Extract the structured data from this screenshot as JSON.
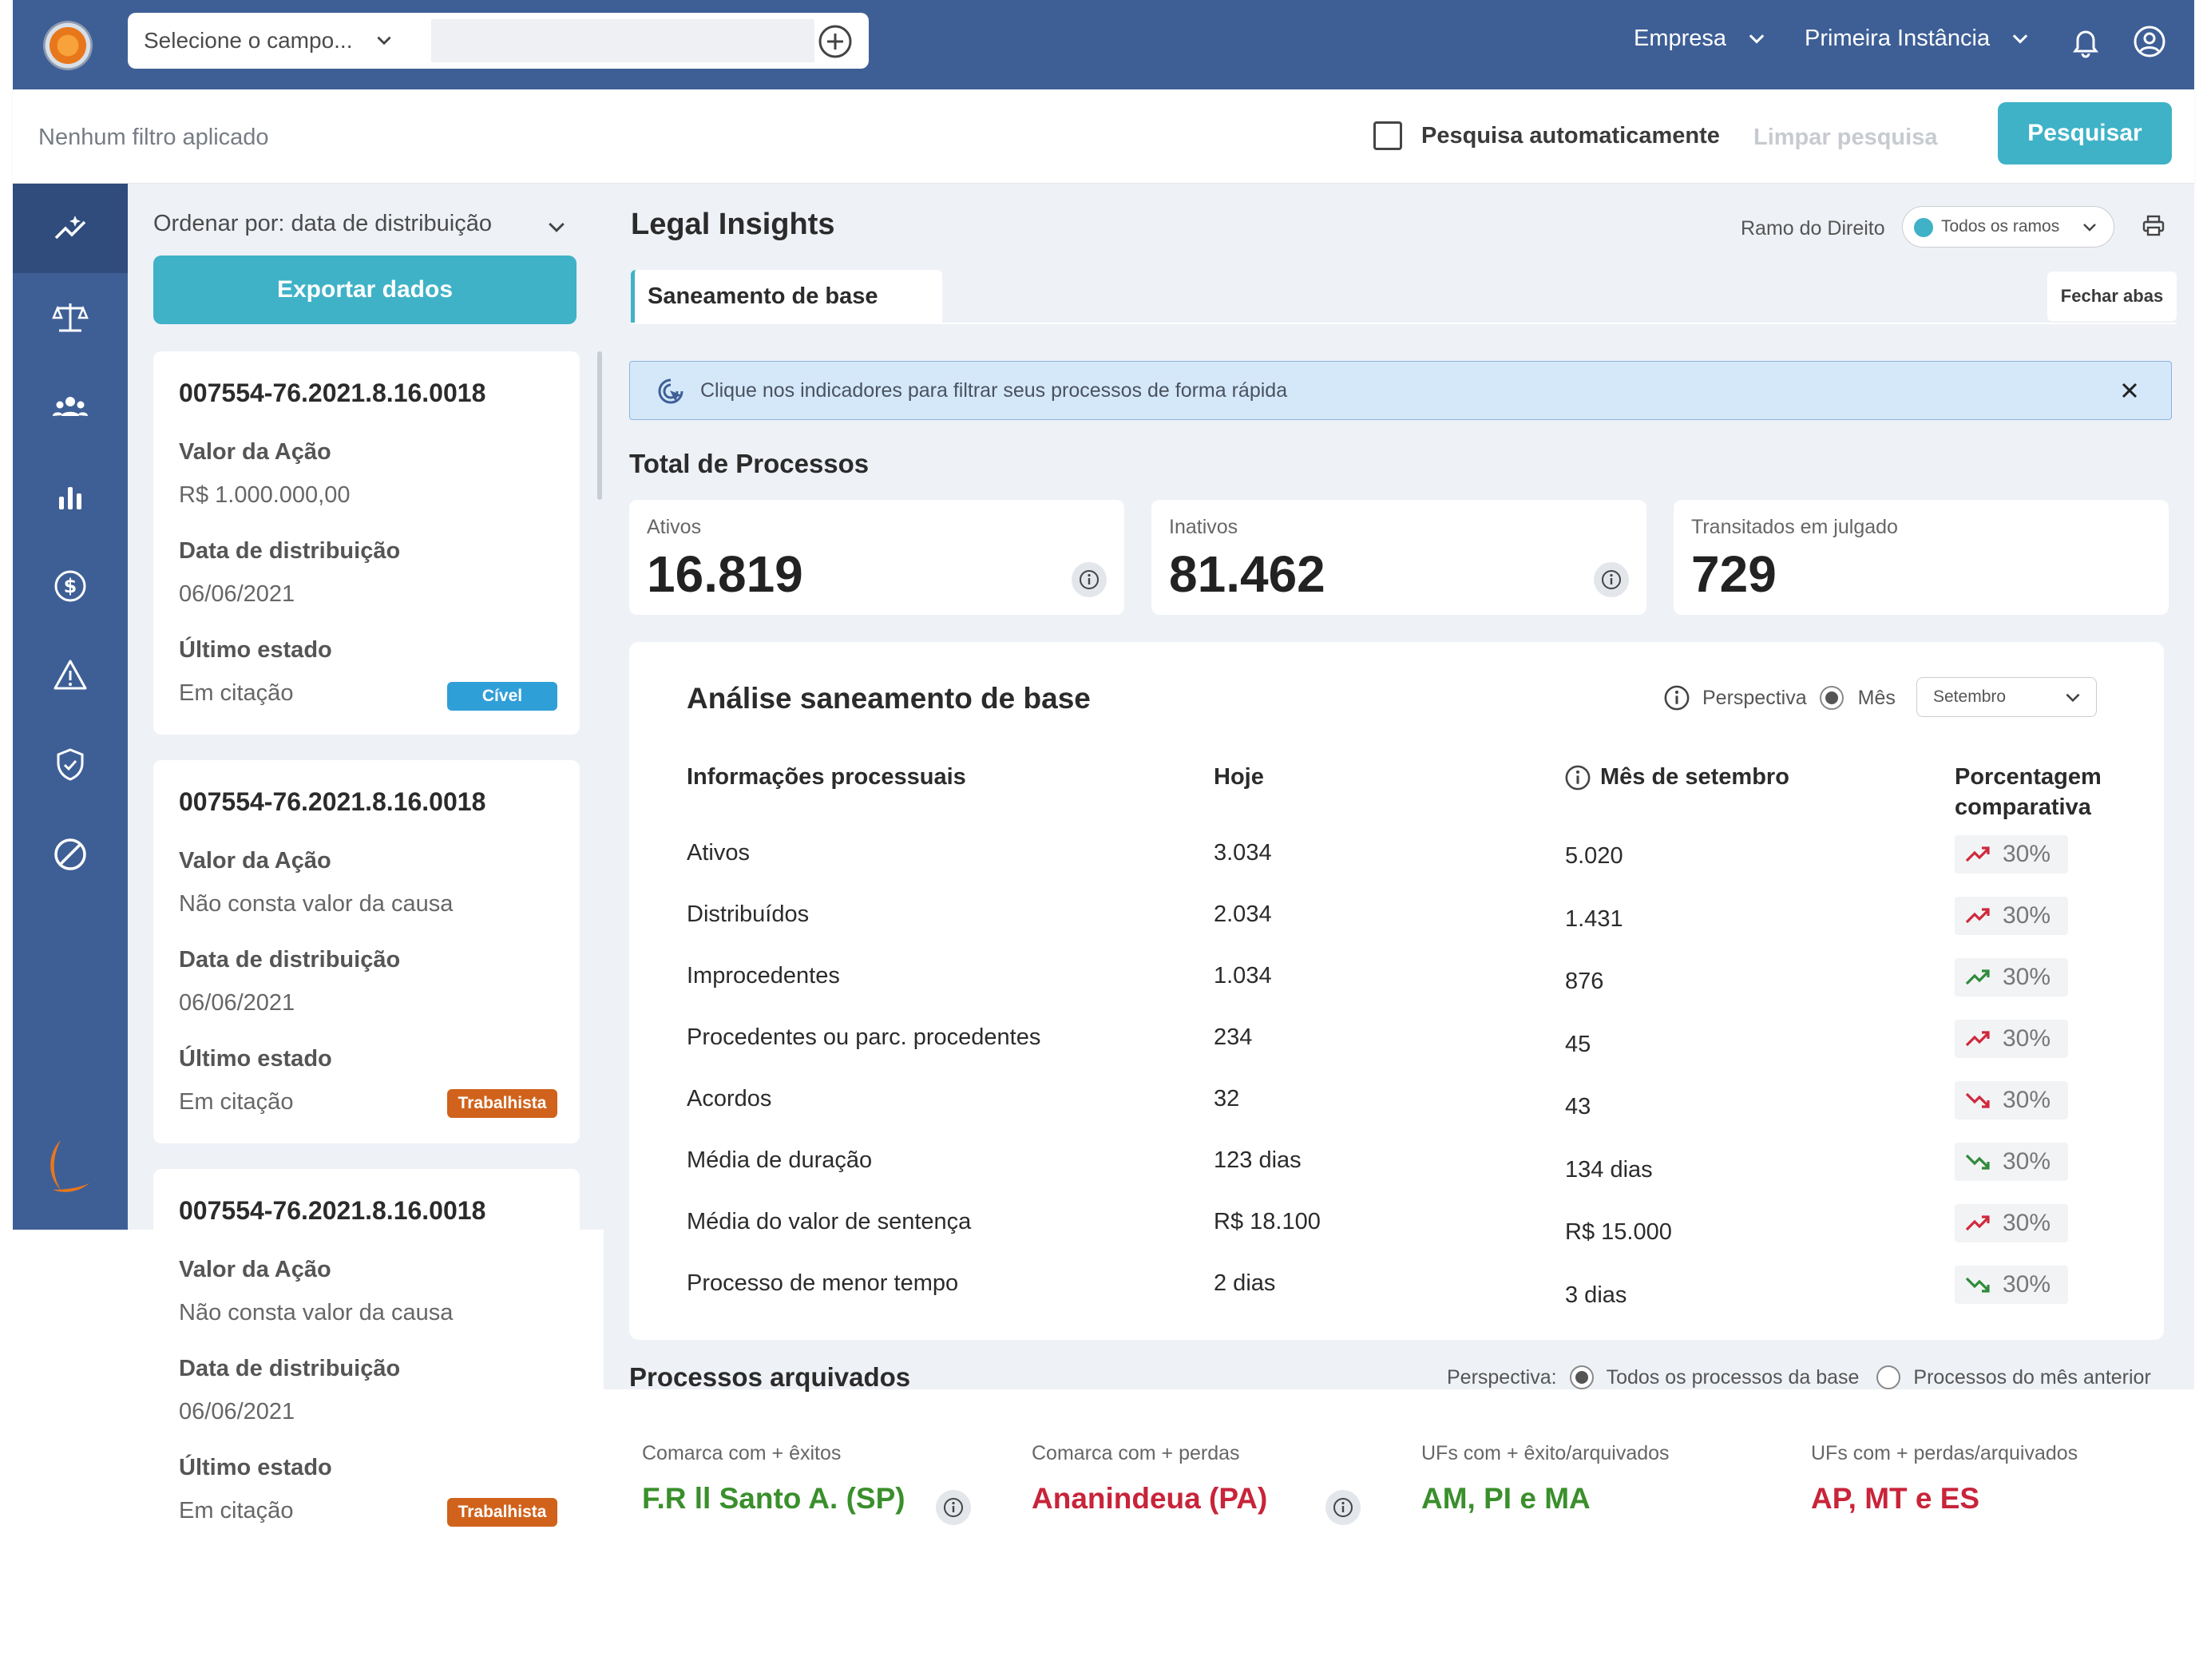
{
  "header": {
    "search_select_label": "Selecione o campo...",
    "search_placeholder": "",
    "menu_company": "Empresa",
    "menu_instance": "Primeira Instância"
  },
  "filterbar": {
    "no_filter": "Nenhum filtro aplicado",
    "auto_search_label": "Pesquisa automaticamente",
    "auto_search_checked": false,
    "clear_label": "Limpar pesquisa",
    "search_button": "Pesquisar"
  },
  "sidebar": {
    "items": [
      {
        "icon": "insights-icon",
        "active": true
      },
      {
        "icon": "scales-icon",
        "active": false
      },
      {
        "icon": "people-icon",
        "active": false
      },
      {
        "icon": "bar-chart-icon",
        "active": false
      },
      {
        "icon": "dollar-icon",
        "active": false
      },
      {
        "icon": "warning-icon",
        "active": false
      },
      {
        "icon": "shield-check-icon",
        "active": false
      },
      {
        "icon": "block-icon",
        "active": false
      }
    ]
  },
  "list": {
    "sort_label": "Ordenar por: data de distribuição",
    "export_button": "Exportar dados",
    "cards": [
      {
        "number": "007554-76.2021.8.16.0018",
        "value_label": "Valor da Ação",
        "value": "R$ 1.000.000,00",
        "date_label": "Data de distribuição",
        "date": "06/06/2021",
        "status_label": "Último estado",
        "status": "Em citação",
        "tag": "Cível",
        "tag_color": "#2f9fd8"
      },
      {
        "number": "007554-76.2021.8.16.0018",
        "value_label": "Valor da Ação",
        "value": "Não consta valor da causa",
        "date_label": "Data de distribuição",
        "date": "06/06/2021",
        "status_label": "Último estado",
        "status": "Em citação",
        "tag": "Trabalhista",
        "tag_color": "#d0621c"
      },
      {
        "number": "007554-76.2021.8.16.0018",
        "value_label": "Valor da Ação",
        "value": "Não consta valor da causa",
        "date_label": "Data de distribuição",
        "date": "06/06/2021",
        "status_label": "Último estado",
        "status": "Em citação",
        "tag": "Trabalhista",
        "tag_color": "#d0621c"
      }
    ]
  },
  "main": {
    "title": "Legal Insights",
    "ramo_label": "Ramo do Direito",
    "ramo_value": "Todos os ramos",
    "tab": "Saneamento de base",
    "close_tabs": "Fechar abas",
    "alert": "Clique nos indicadores para filtrar seus processos de forma rápida",
    "total_title": "Total de Processos",
    "kpis": [
      {
        "label": "Ativos",
        "value": "16.819"
      },
      {
        "label": "Inativos",
        "value": "81.462"
      },
      {
        "label": "Transitados em julgado",
        "value": "729"
      }
    ],
    "analysis": {
      "title": "Análise saneamento de base",
      "perspective_label": "Perspectiva",
      "month_option": "Mês",
      "month_select": "Setembro",
      "headers": [
        "Informações processuais",
        "Hoje",
        "Mês de setembro",
        "Porcentagem comparativa"
      ],
      "rows": [
        {
          "label": "Ativos",
          "today": "3.034",
          "month": "5.020",
          "pct": "30%",
          "trend": "up",
          "color": "#d0283c"
        },
        {
          "label": "Distribuídos",
          "today": "2.034",
          "month": "1.431",
          "pct": "30%",
          "trend": "up",
          "color": "#d0283c"
        },
        {
          "label": "Improcedentes",
          "today": "1.034",
          "month": "876",
          "pct": "30%",
          "trend": "up",
          "color": "#2e8b3a"
        },
        {
          "label": "Procedentes ou parc. procedentes",
          "today": "234",
          "month": "45",
          "pct": "30%",
          "trend": "up",
          "color": "#d0283c"
        },
        {
          "label": "Acordos",
          "today": "32",
          "month": "43",
          "pct": "30%",
          "trend": "down",
          "color": "#d0283c"
        },
        {
          "label": "Média de duração",
          "today": "123 dias",
          "month": "134 dias",
          "pct": "30%",
          "trend": "down",
          "color": "#2e8b3a"
        },
        {
          "label": "Média do valor de sentença",
          "today": "R$ 18.100",
          "month": "R$ 15.000",
          "pct": "30%",
          "trend": "up",
          "color": "#d0283c"
        },
        {
          "label": "Processo de menor tempo",
          "today": "2 dias",
          "month": "3 dias",
          "pct": "30%",
          "trend": "down",
          "color": "#2e8b3a"
        }
      ]
    },
    "archived": {
      "title": "Processos arquivados",
      "perspective_label": "Perspectiva:",
      "option_all": "Todos os processos da base",
      "option_prev": "Processos do mês anterior",
      "stats": [
        {
          "label": "Comarca com + êxitos",
          "value": "F.R ll Santo A. (SP)",
          "color": "#3a8f2c"
        },
        {
          "label": "Comarca com + perdas",
          "value": "Ananindeua (PA)",
          "color": "#c8243a"
        },
        {
          "label": "UFs com + êxito/arquivados",
          "value": "AM, PI e MA",
          "color": "#3a8f2c"
        },
        {
          "label": "UFs com + perdas/arquivados",
          "value": "AP, MT e ES",
          "color": "#c8243a"
        }
      ]
    }
  }
}
